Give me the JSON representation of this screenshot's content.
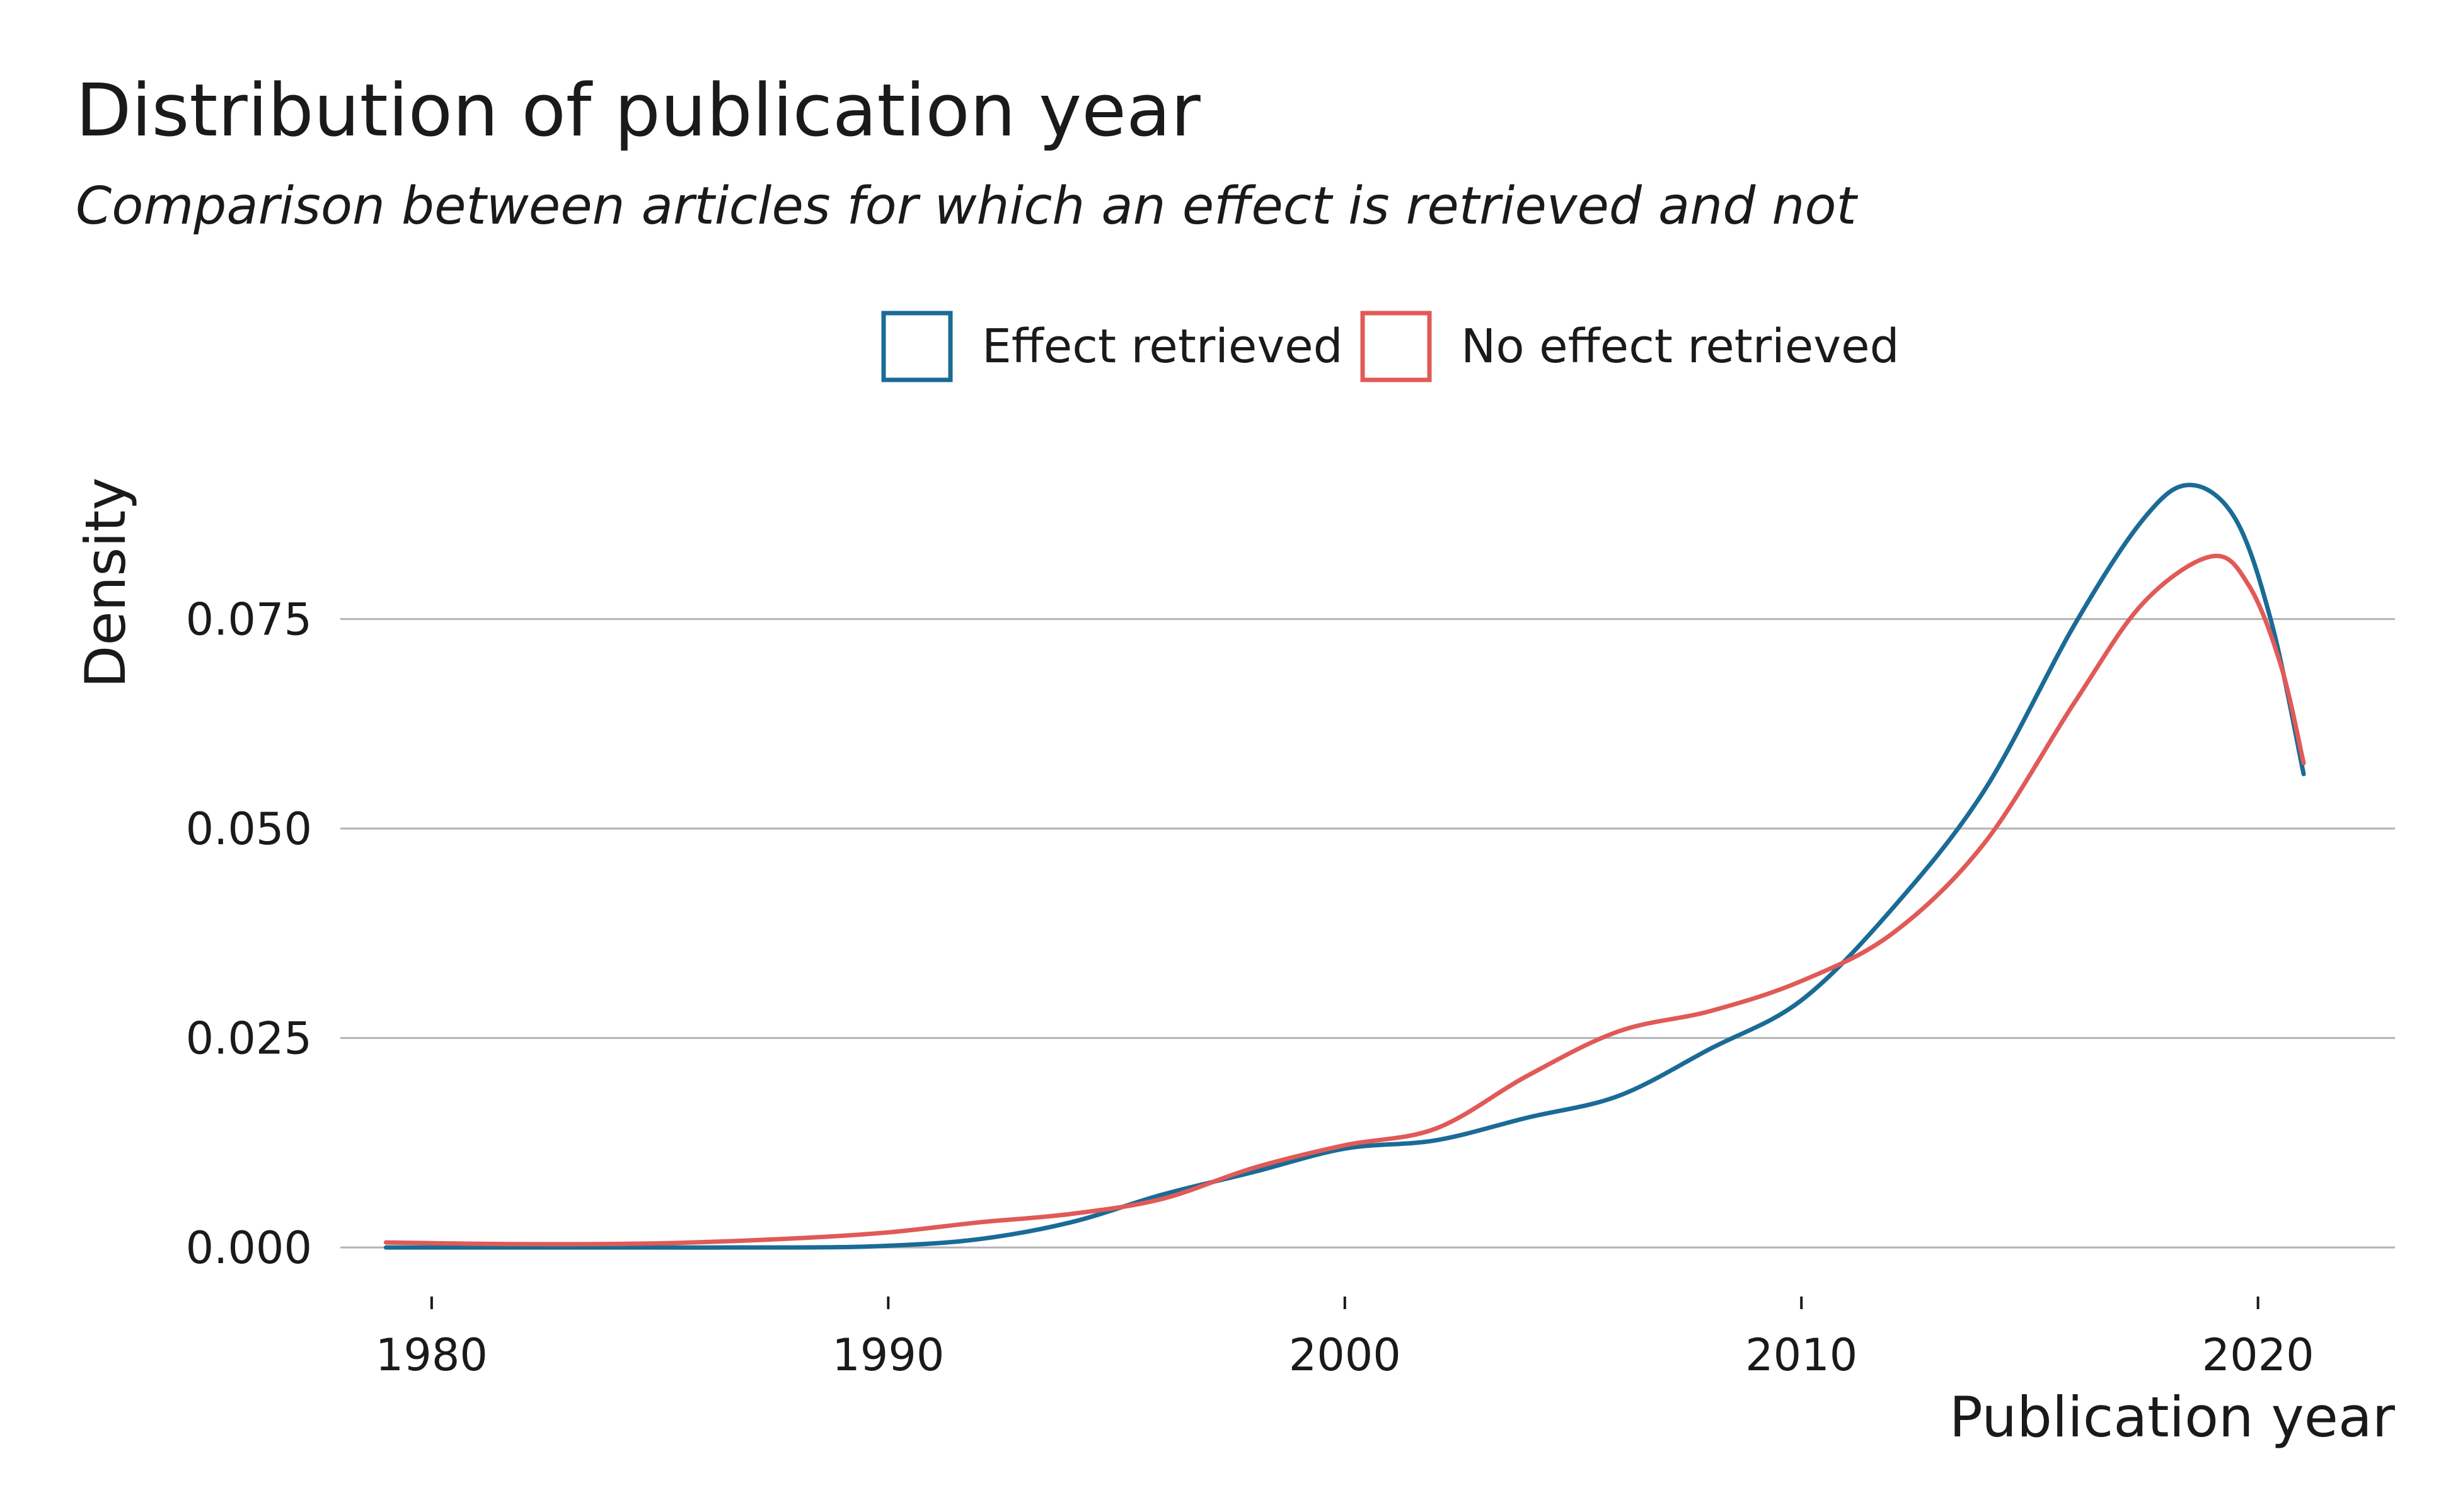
{
  "chart_data": {
    "type": "line",
    "title": "Distribution of publication year",
    "subtitle": "Comparison between articles for which an effect is retrieved and not",
    "xlabel": "Publication year",
    "ylabel": "Density",
    "xlim": [
      1978,
      2023
    ],
    "ylim": [
      -0.003,
      0.097
    ],
    "x_ticks": [
      1980,
      1990,
      2000,
      2010,
      2020
    ],
    "x_tick_labels": [
      "1980",
      "1990",
      "2000",
      "2010",
      "2020"
    ],
    "y_ticks": [
      0,
      0.025,
      0.05,
      0.075
    ],
    "y_tick_labels": [
      "0.000",
      "0.025",
      "0.050",
      "0.075"
    ],
    "grid": "horizontal",
    "legend_position": "top",
    "series": [
      {
        "name": "Effect retrieved",
        "color": "#1a6b96",
        "points": [
          [
            1979,
            0.0
          ],
          [
            1982,
            0.0
          ],
          [
            1985,
            0.0
          ],
          [
            1988,
            0.0
          ],
          [
            1990,
            0.0002
          ],
          [
            1992,
            0.001
          ],
          [
            1994,
            0.003
          ],
          [
            1996,
            0.0063
          ],
          [
            1998,
            0.009
          ],
          [
            2000,
            0.0118
          ],
          [
            2002,
            0.0128
          ],
          [
            2004,
            0.0155
          ],
          [
            2006,
            0.0181
          ],
          [
            2008,
            0.0237
          ],
          [
            2010,
            0.0295
          ],
          [
            2012,
            0.0405
          ],
          [
            2014,
            0.0545
          ],
          [
            2016,
            0.0745
          ],
          [
            2017.5,
            0.087
          ],
          [
            2018.5,
            0.091
          ],
          [
            2019.5,
            0.087
          ],
          [
            2020.3,
            0.0745
          ],
          [
            2021,
            0.0565
          ]
        ]
      },
      {
        "name": "No effect retrieved",
        "color": "#e05a57",
        "points": [
          [
            1979,
            0.0006
          ],
          [
            1982,
            0.0004
          ],
          [
            1985,
            0.0005
          ],
          [
            1988,
            0.0011
          ],
          [
            1990,
            0.0018
          ],
          [
            1992,
            0.003
          ],
          [
            1994,
            0.004
          ],
          [
            1996,
            0.0058
          ],
          [
            1998,
            0.0095
          ],
          [
            2000,
            0.0122
          ],
          [
            2002,
            0.0142
          ],
          [
            2004,
            0.0205
          ],
          [
            2006,
            0.0258
          ],
          [
            2008,
            0.0282
          ],
          [
            2010,
            0.0318
          ],
          [
            2012,
            0.0375
          ],
          [
            2014,
            0.0482
          ],
          [
            2016,
            0.0652
          ],
          [
            2017.5,
            0.077
          ],
          [
            2019,
            0.0825
          ],
          [
            2019.8,
            0.079
          ],
          [
            2020.5,
            0.0695
          ],
          [
            2021,
            0.0578
          ]
        ]
      }
    ]
  }
}
